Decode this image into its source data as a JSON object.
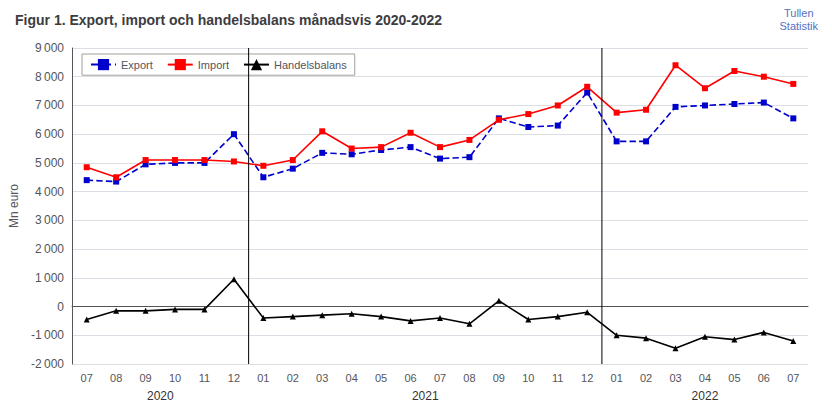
{
  "chart_data": {
    "type": "line",
    "title": "Figur 1. Export, import och handelsbalans månadsvis 2020-2022",
    "y_label": "Mn euro",
    "categories": [
      "07",
      "08",
      "09",
      "10",
      "11",
      "12",
      "01",
      "02",
      "03",
      "04",
      "05",
      "06",
      "07",
      "08",
      "09",
      "10",
      "11",
      "12",
      "01",
      "02",
      "03",
      "04",
      "05",
      "06",
      "07"
    ],
    "series": [
      {
        "name": "Export",
        "color": "#0000CD",
        "marker": "square",
        "line_style": "dashed",
        "values": [
          4400,
          4350,
          4950,
          5000,
          5000,
          6000,
          4500,
          4800,
          5350,
          5300,
          5450,
          5550,
          5150,
          5200,
          6550,
          6250,
          6300,
          7450,
          5750,
          5750,
          6950,
          7000,
          7050,
          7100,
          6550
        ]
      },
      {
        "name": "Import",
        "color": "#FF0000",
        "marker": "square",
        "line_style": "solid",
        "values": [
          4850,
          4500,
          5100,
          5100,
          5100,
          5050,
          4900,
          5100,
          6100,
          5500,
          5550,
          6050,
          5550,
          5800,
          6500,
          6700,
          7000,
          7650,
          6750,
          6850,
          8400,
          7600,
          8200,
          8000,
          7750
        ]
      },
      {
        "name": "Handelsbalans",
        "color": "#000000",
        "marker": "triangle",
        "line_style": "solid",
        "values": [
          -450,
          -150,
          -150,
          -100,
          -100,
          950,
          -400,
          -350,
          -300,
          -250,
          -350,
          -500,
          -400,
          -600,
          200,
          -450,
          -350,
          -200,
          -1000,
          -1100,
          -1450,
          -1050,
          -1150,
          -900,
          -1200
        ]
      }
    ],
    "ylim": [
      -2000,
      9000
    ],
    "yticks": [
      {
        "value": -2000,
        "label": "-2 000"
      },
      {
        "value": -1000,
        "label": "-1 000"
      },
      0,
      {
        "value": 1000,
        "label": "1 000"
      },
      {
        "value": 2000,
        "label": "2 000"
      },
      {
        "value": 3000,
        "label": "3 000"
      },
      {
        "value": 4000,
        "label": "4 000"
      },
      {
        "value": 5000,
        "label": "5 000"
      },
      {
        "value": 6000,
        "label": "6 000"
      },
      {
        "value": 7000,
        "label": "7 000"
      },
      {
        "value": 8000,
        "label": "8 000"
      },
      {
        "value": 9000,
        "label": "9 000"
      }
    ],
    "annotations": [
      {
        "text": "2020",
        "start": 0,
        "end": 5
      },
      {
        "text": "2021",
        "start": 6,
        "end": 17
      },
      {
        "text": "2022",
        "start": 18,
        "end": 24
      },
      {
        "text": "Tullen\nStatistik"
      }
    ],
    "grid": true,
    "legend": "upper left"
  }
}
